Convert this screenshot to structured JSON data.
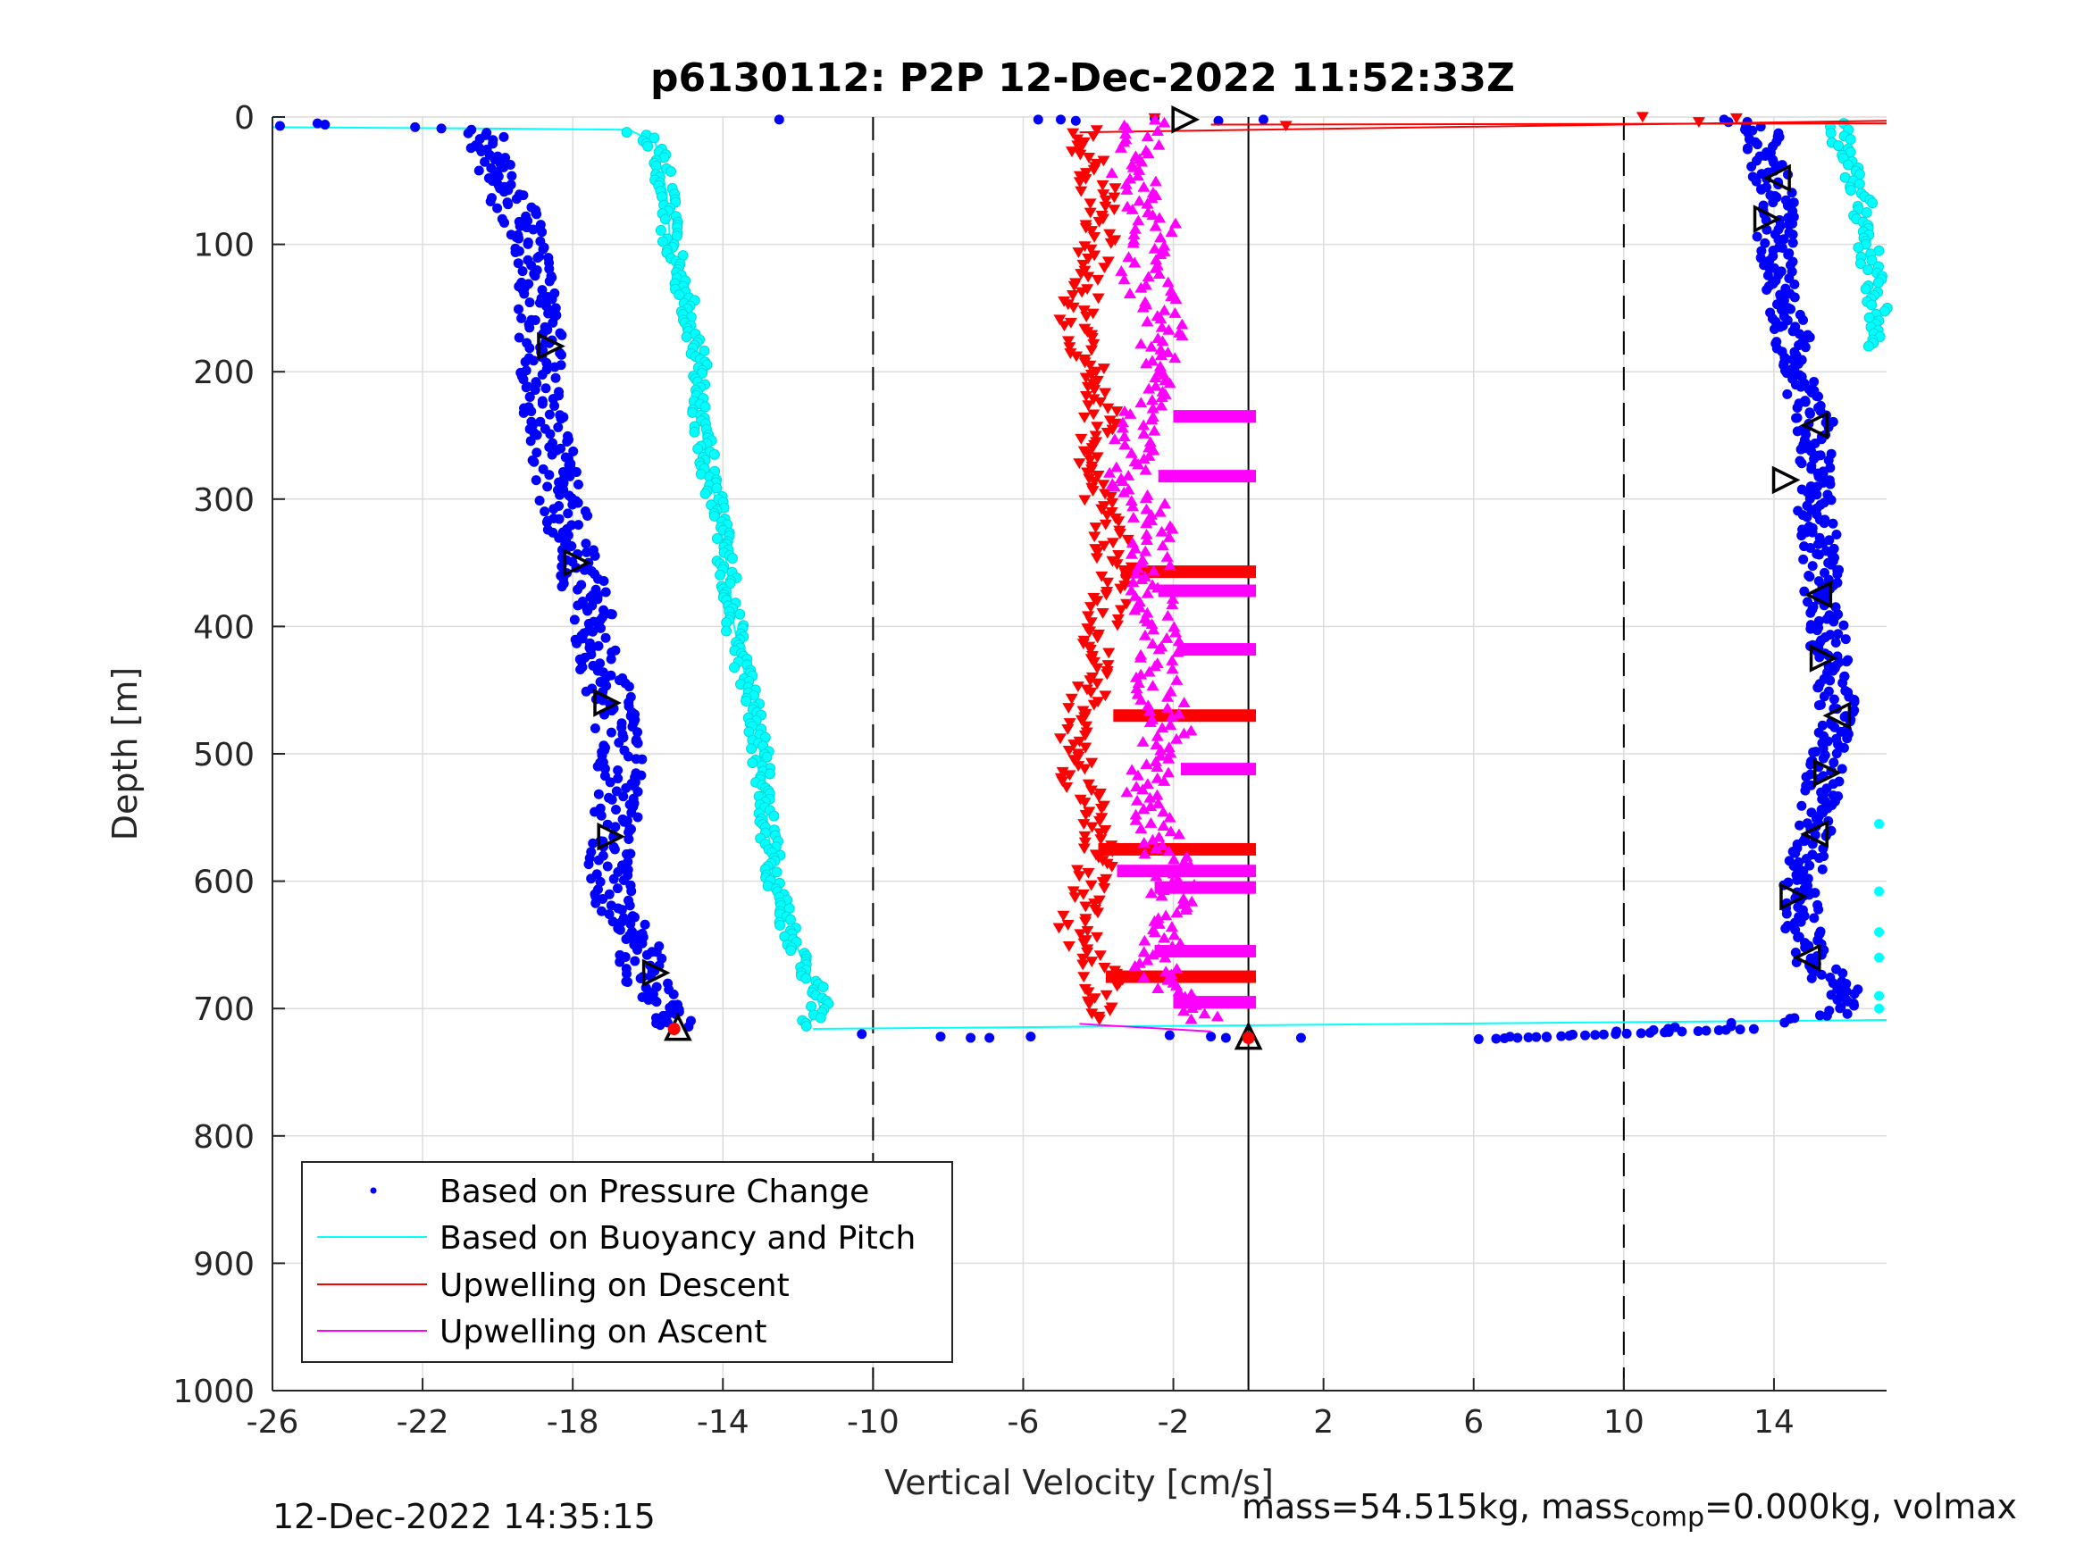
{
  "chart_data": {
    "type": "scatter",
    "title": "p6130112: P2P 12-Dec-2022 11:52:33Z",
    "xlabel": "Vertical Velocity [cm/s]",
    "ylabel": "Depth [m]",
    "xlim": [
      -26,
      17
    ],
    "ylim": [
      0,
      1000
    ],
    "y_reversed": true,
    "xticks": [
      -26,
      -22,
      -18,
      -14,
      -10,
      -6,
      -2,
      2,
      6,
      10,
      14
    ],
    "xtick_labels": [
      "-26",
      "-22",
      "-18",
      "-14",
      "-10",
      "-6",
      "-2",
      "2",
      "6",
      "10",
      "14"
    ],
    "yticks": [
      0,
      100,
      200,
      300,
      400,
      500,
      600,
      700,
      800,
      900,
      1000
    ],
    "ytick_labels": [
      "0",
      "100",
      "200",
      "300",
      "400",
      "500",
      "600",
      "700",
      "800",
      "900",
      "1000"
    ],
    "grid": true,
    "legend_position": "bottom-left",
    "reference_lines": [
      {
        "x": -10,
        "style": "dashed"
      },
      {
        "x": 0,
        "style": "solid"
      },
      {
        "x": 10,
        "style": "dashed"
      }
    ],
    "series": [
      {
        "name": "Based on Pressure Change",
        "color": "#0000ff",
        "marker": "dot",
        "segments": [
          {
            "x": [
              -25.8,
              -24.8,
              -24.6,
              -22.2,
              -21.5,
              -20.6,
              -20.2,
              -20.0,
              -19.6,
              -19.2,
              -19.0,
              -18.8,
              -18.8,
              -18.6,
              -18.3,
              -18.0,
              -17.6,
              -17.3,
              -17.0,
              -16.7,
              -16.9,
              -17.1,
              -16.4,
              -16.0,
              -15.5,
              -15.2,
              -14.6,
              -13.2,
              -12.5
            ],
            "y": [
              7,
              5,
              6,
              8,
              10,
              12,
              20,
              40,
              70,
              100,
              140,
              180,
              220,
              250,
              300,
              340,
              380,
              420,
              460,
              500,
              560,
              600,
              640,
              680,
              700,
              715,
              712,
              718,
              2
            ]
          }
        ],
        "segments_right": [
          {
            "x": [
              10.8,
              12.0,
              13.6,
              13.9,
              14.1,
              14.0,
              14.4,
              14.6,
              15.1,
              15.0,
              15.2,
              15.3,
              15.5,
              15.7,
              15.3,
              15.0,
              14.7,
              14.8,
              15.0,
              15.6,
              16.0,
              15.5,
              14.0,
              12.0,
              10.5,
              9.0,
              7.5,
              6.0
            ],
            "y": [
              0,
              1,
              5,
              40,
              80,
              110,
              160,
              200,
              240,
              280,
              330,
              380,
              430,
              470,
              520,
              570,
              610,
              640,
              660,
              680,
              695,
              705,
              710,
              714,
              718,
              720,
              722,
              724
            ]
          }
        ],
        "bottom_dots": {
          "x": [
            -10.3,
            -8.2,
            -7.4,
            -6.9,
            -5.8,
            -2.1,
            -1.0,
            -0.6,
            1.4
          ],
          "y": [
            720,
            722,
            723,
            723,
            722,
            721,
            722,
            723,
            723
          ]
        },
        "top_dots": {
          "x": [
            -5.6,
            -5.0,
            -4.6,
            -2.5,
            0.4,
            -0.8
          ],
          "y": [
            2,
            2,
            3,
            1,
            2,
            3
          ]
        }
      },
      {
        "name": "Based on Buoyancy and Pitch",
        "color": "#00ffff",
        "marker": "circle-line",
        "x": [
          -26,
          -20.2,
          -16.5,
          -15.8,
          -15.5,
          -15.4,
          -15.0,
          -14.7,
          -14.6,
          -14.5,
          -14.2,
          -13.9,
          -13.7,
          -13.4,
          -13.1,
          -12.9,
          -12.8,
          -12.6,
          -12.2,
          -11.6,
          -11.4,
          -11.8
        ],
        "y": [
          8,
          9,
          10,
          20,
          60,
          100,
          140,
          180,
          220,
          260,
          300,
          350,
          400,
          440,
          480,
          520,
          560,
          600,
          640,
          680,
          700,
          715
        ],
        "right_x": [
          15.7,
          15.9,
          16.3,
          16.5,
          16.7,
          16.8,
          16.8,
          16.6
        ],
        "right_y": [
          5,
          35,
          60,
          100,
          140,
          180,
          560,
          700
        ]
      },
      {
        "name": "Upwelling on Descent",
        "color": "#ff0000",
        "marker": "triangle-down",
        "x": [
          -4.5,
          -4.2,
          -3.8,
          -4.3,
          -4.6,
          -4.1,
          -3.9,
          -4.4,
          -3.8,
          -3.5,
          -3.9,
          -4.1,
          -4.6,
          -4.5,
          -3.9,
          -4.2,
          -4.6,
          -3.8,
          -4.2
        ],
        "y": [
          10,
          40,
          80,
          120,
          160,
          200,
          240,
          280,
          320,
          360,
          400,
          440,
          480,
          520,
          560,
          600,
          640,
          680,
          710
        ]
      },
      {
        "name": "Upwelling on Ascent",
        "color": "#ff00ff",
        "marker": "triangle-up",
        "x": [
          -2.8,
          -3.1,
          -2.5,
          -2.9,
          -2.2,
          -2.6,
          -2.9,
          -3.2,
          -2.4,
          -2.7,
          -2.3,
          -2.5,
          -2.1,
          -2.8,
          -2.4,
          -2.0,
          -2.2,
          -2.6,
          -2.1,
          -1.5,
          -1.2
        ],
        "y": [
          0,
          40,
          80,
          120,
          160,
          200,
          240,
          280,
          320,
          360,
          400,
          440,
          480,
          520,
          560,
          600,
          640,
          660,
          680,
          700,
          710
        ]
      }
    ],
    "bands": [
      {
        "y": 235,
        "x0": -2.0,
        "x1": 0.2,
        "color": "#ff00ff"
      },
      {
        "y": 282,
        "x0": -2.4,
        "x1": 0.2,
        "color": "#ff00ff"
      },
      {
        "y": 357,
        "x0": -3.4,
        "x1": 0.2,
        "color": "#ff0000"
      },
      {
        "y": 372,
        "x0": -2.4,
        "x1": 0.2,
        "color": "#ff00ff"
      },
      {
        "y": 418,
        "x0": -1.9,
        "x1": 0.2,
        "color": "#ff00ff"
      },
      {
        "y": 470,
        "x0": -3.6,
        "x1": 0.2,
        "color": "#ff0000"
      },
      {
        "y": 512,
        "x0": -1.8,
        "x1": 0.2,
        "color": "#ff00ff"
      },
      {
        "y": 575,
        "x0": -4.0,
        "x1": 0.2,
        "color": "#ff0000"
      },
      {
        "y": 592,
        "x0": -3.5,
        "x1": 0.2,
        "color": "#ff00ff"
      },
      {
        "y": 605,
        "x0": -2.5,
        "x1": 0.2,
        "color": "#ff00ff"
      },
      {
        "y": 655,
        "x0": -2.5,
        "x1": 0.2,
        "color": "#ff00ff"
      },
      {
        "y": 675,
        "x0": -3.8,
        "x1": 0.2,
        "color": "#ff0000"
      },
      {
        "y": 695,
        "x0": -2.0,
        "x1": 0.2,
        "color": "#ff00ff"
      }
    ],
    "black_triangles": [
      {
        "x": -18.6,
        "y": 180,
        "dir": "right"
      },
      {
        "x": -17.9,
        "y": 350,
        "dir": "right"
      },
      {
        "x": -17.1,
        "y": 460,
        "dir": "right"
      },
      {
        "x": -17.0,
        "y": 565,
        "dir": "right"
      },
      {
        "x": -15.8,
        "y": 672,
        "dir": "right"
      },
      {
        "x": -15.2,
        "y": 715,
        "dir": "up"
      },
      {
        "x": -1.7,
        "y": 2,
        "dir": "right"
      },
      {
        "x": 0.0,
        "y": 722,
        "dir": "up"
      },
      {
        "x": 14.1,
        "y": 48,
        "dir": "left"
      },
      {
        "x": 13.8,
        "y": 80,
        "dir": "right"
      },
      {
        "x": 15.1,
        "y": 242,
        "dir": "left"
      },
      {
        "x": 14.3,
        "y": 285,
        "dir": "right"
      },
      {
        "x": 15.2,
        "y": 375,
        "dir": "left"
      },
      {
        "x": 15.3,
        "y": 425,
        "dir": "right"
      },
      {
        "x": 15.7,
        "y": 470,
        "dir": "left"
      },
      {
        "x": 15.4,
        "y": 515,
        "dir": "right"
      },
      {
        "x": 15.1,
        "y": 563,
        "dir": "left"
      },
      {
        "x": 14.5,
        "y": 612,
        "dir": "right"
      },
      {
        "x": 14.9,
        "y": 660,
        "dir": "left"
      }
    ]
  },
  "footer": {
    "timestamp": "12-Dec-2022 14:35:15",
    "mass_text_a": "mass=54.515kg, mass",
    "mass_sub": "comp",
    "mass_text_b": "=0.000kg, volmax"
  }
}
